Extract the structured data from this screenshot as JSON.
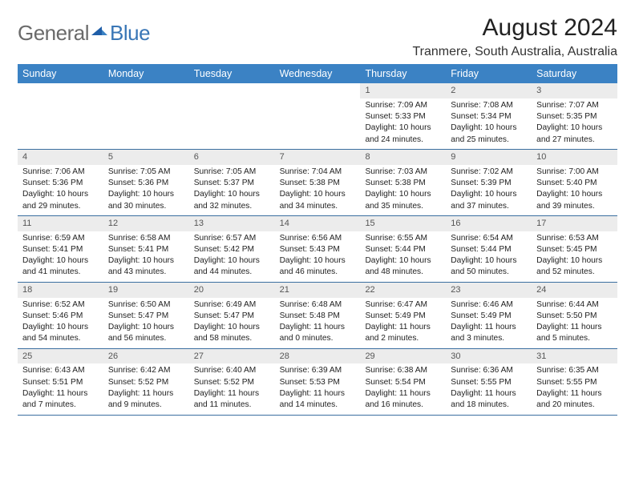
{
  "logo": {
    "general": "General",
    "blue": "Blue"
  },
  "title": "August 2024",
  "location": "Tranmere, South Australia, Australia",
  "weekdays": [
    "Sunday",
    "Monday",
    "Tuesday",
    "Wednesday",
    "Thursday",
    "Friday",
    "Saturday"
  ],
  "colors": {
    "header_bg": "#3b82c4",
    "header_text": "#ffffff",
    "daynum_bg": "#ececec",
    "divider": "#3b6fa0",
    "logo_gray": "#6a6a6a",
    "logo_blue": "#3976b6"
  },
  "weeks": [
    [
      {
        "empty": true
      },
      {
        "empty": true
      },
      {
        "empty": true
      },
      {
        "empty": true
      },
      {
        "num": "1",
        "sunrise": "Sunrise: 7:09 AM",
        "sunset": "Sunset: 5:33 PM",
        "day1": "Daylight: 10 hours",
        "day2": "and 24 minutes."
      },
      {
        "num": "2",
        "sunrise": "Sunrise: 7:08 AM",
        "sunset": "Sunset: 5:34 PM",
        "day1": "Daylight: 10 hours",
        "day2": "and 25 minutes."
      },
      {
        "num": "3",
        "sunrise": "Sunrise: 7:07 AM",
        "sunset": "Sunset: 5:35 PM",
        "day1": "Daylight: 10 hours",
        "day2": "and 27 minutes."
      }
    ],
    [
      {
        "num": "4",
        "sunrise": "Sunrise: 7:06 AM",
        "sunset": "Sunset: 5:36 PM",
        "day1": "Daylight: 10 hours",
        "day2": "and 29 minutes."
      },
      {
        "num": "5",
        "sunrise": "Sunrise: 7:05 AM",
        "sunset": "Sunset: 5:36 PM",
        "day1": "Daylight: 10 hours",
        "day2": "and 30 minutes."
      },
      {
        "num": "6",
        "sunrise": "Sunrise: 7:05 AM",
        "sunset": "Sunset: 5:37 PM",
        "day1": "Daylight: 10 hours",
        "day2": "and 32 minutes."
      },
      {
        "num": "7",
        "sunrise": "Sunrise: 7:04 AM",
        "sunset": "Sunset: 5:38 PM",
        "day1": "Daylight: 10 hours",
        "day2": "and 34 minutes."
      },
      {
        "num": "8",
        "sunrise": "Sunrise: 7:03 AM",
        "sunset": "Sunset: 5:38 PM",
        "day1": "Daylight: 10 hours",
        "day2": "and 35 minutes."
      },
      {
        "num": "9",
        "sunrise": "Sunrise: 7:02 AM",
        "sunset": "Sunset: 5:39 PM",
        "day1": "Daylight: 10 hours",
        "day2": "and 37 minutes."
      },
      {
        "num": "10",
        "sunrise": "Sunrise: 7:00 AM",
        "sunset": "Sunset: 5:40 PM",
        "day1": "Daylight: 10 hours",
        "day2": "and 39 minutes."
      }
    ],
    [
      {
        "num": "11",
        "sunrise": "Sunrise: 6:59 AM",
        "sunset": "Sunset: 5:41 PM",
        "day1": "Daylight: 10 hours",
        "day2": "and 41 minutes."
      },
      {
        "num": "12",
        "sunrise": "Sunrise: 6:58 AM",
        "sunset": "Sunset: 5:41 PM",
        "day1": "Daylight: 10 hours",
        "day2": "and 43 minutes."
      },
      {
        "num": "13",
        "sunrise": "Sunrise: 6:57 AM",
        "sunset": "Sunset: 5:42 PM",
        "day1": "Daylight: 10 hours",
        "day2": "and 44 minutes."
      },
      {
        "num": "14",
        "sunrise": "Sunrise: 6:56 AM",
        "sunset": "Sunset: 5:43 PM",
        "day1": "Daylight: 10 hours",
        "day2": "and 46 minutes."
      },
      {
        "num": "15",
        "sunrise": "Sunrise: 6:55 AM",
        "sunset": "Sunset: 5:44 PM",
        "day1": "Daylight: 10 hours",
        "day2": "and 48 minutes."
      },
      {
        "num": "16",
        "sunrise": "Sunrise: 6:54 AM",
        "sunset": "Sunset: 5:44 PM",
        "day1": "Daylight: 10 hours",
        "day2": "and 50 minutes."
      },
      {
        "num": "17",
        "sunrise": "Sunrise: 6:53 AM",
        "sunset": "Sunset: 5:45 PM",
        "day1": "Daylight: 10 hours",
        "day2": "and 52 minutes."
      }
    ],
    [
      {
        "num": "18",
        "sunrise": "Sunrise: 6:52 AM",
        "sunset": "Sunset: 5:46 PM",
        "day1": "Daylight: 10 hours",
        "day2": "and 54 minutes."
      },
      {
        "num": "19",
        "sunrise": "Sunrise: 6:50 AM",
        "sunset": "Sunset: 5:47 PM",
        "day1": "Daylight: 10 hours",
        "day2": "and 56 minutes."
      },
      {
        "num": "20",
        "sunrise": "Sunrise: 6:49 AM",
        "sunset": "Sunset: 5:47 PM",
        "day1": "Daylight: 10 hours",
        "day2": "and 58 minutes."
      },
      {
        "num": "21",
        "sunrise": "Sunrise: 6:48 AM",
        "sunset": "Sunset: 5:48 PM",
        "day1": "Daylight: 11 hours",
        "day2": "and 0 minutes."
      },
      {
        "num": "22",
        "sunrise": "Sunrise: 6:47 AM",
        "sunset": "Sunset: 5:49 PM",
        "day1": "Daylight: 11 hours",
        "day2": "and 2 minutes."
      },
      {
        "num": "23",
        "sunrise": "Sunrise: 6:46 AM",
        "sunset": "Sunset: 5:49 PM",
        "day1": "Daylight: 11 hours",
        "day2": "and 3 minutes."
      },
      {
        "num": "24",
        "sunrise": "Sunrise: 6:44 AM",
        "sunset": "Sunset: 5:50 PM",
        "day1": "Daylight: 11 hours",
        "day2": "and 5 minutes."
      }
    ],
    [
      {
        "num": "25",
        "sunrise": "Sunrise: 6:43 AM",
        "sunset": "Sunset: 5:51 PM",
        "day1": "Daylight: 11 hours",
        "day2": "and 7 minutes."
      },
      {
        "num": "26",
        "sunrise": "Sunrise: 6:42 AM",
        "sunset": "Sunset: 5:52 PM",
        "day1": "Daylight: 11 hours",
        "day2": "and 9 minutes."
      },
      {
        "num": "27",
        "sunrise": "Sunrise: 6:40 AM",
        "sunset": "Sunset: 5:52 PM",
        "day1": "Daylight: 11 hours",
        "day2": "and 11 minutes."
      },
      {
        "num": "28",
        "sunrise": "Sunrise: 6:39 AM",
        "sunset": "Sunset: 5:53 PM",
        "day1": "Daylight: 11 hours",
        "day2": "and 14 minutes."
      },
      {
        "num": "29",
        "sunrise": "Sunrise: 6:38 AM",
        "sunset": "Sunset: 5:54 PM",
        "day1": "Daylight: 11 hours",
        "day2": "and 16 minutes."
      },
      {
        "num": "30",
        "sunrise": "Sunrise: 6:36 AM",
        "sunset": "Sunset: 5:55 PM",
        "day1": "Daylight: 11 hours",
        "day2": "and 18 minutes."
      },
      {
        "num": "31",
        "sunrise": "Sunrise: 6:35 AM",
        "sunset": "Sunset: 5:55 PM",
        "day1": "Daylight: 11 hours",
        "day2": "and 20 minutes."
      }
    ]
  ]
}
